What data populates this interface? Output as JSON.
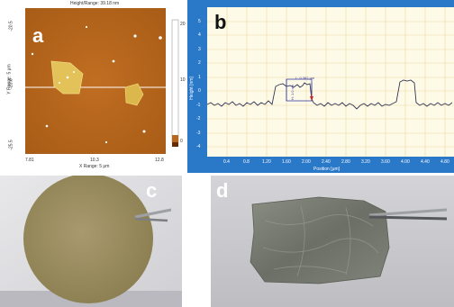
{
  "panels": {
    "a": {
      "letter": "a",
      "header": "Height/Range: 39.18 nm",
      "x_axis_label": "X Range: 5 μm",
      "y_axis_label": "Y Range: 5 μm",
      "x_ticks": [
        "7.81",
        "10.3",
        "12.8"
      ],
      "y_ticks": [
        "-20.5",
        "-23.0",
        "-25.5"
      ],
      "colorbar_ticks": [
        "20",
        "10",
        "0"
      ]
    },
    "b": {
      "letter": "b",
      "y_axis_label": "Height [nm]",
      "x_axis_label": "Position [μm]",
      "y_ticks": [
        "5",
        "4",
        "3",
        "2",
        "1",
        "0",
        "-1",
        "-2",
        "-3",
        "-4"
      ],
      "x_ticks": [
        "0.4",
        "0.8",
        "1.20",
        "1.60",
        "2.00",
        "2.40",
        "2.80",
        "3.20",
        "3.60",
        "4.00",
        "4.40",
        "4.80"
      ],
      "annotation_h": "H: 1.0 nm",
      "annotation_l": "L: 0.362 μm"
    },
    "c": {
      "letter": "c"
    },
    "d": {
      "letter": "d"
    }
  },
  "colors": {
    "afm_background": "#b8681e",
    "afm_flake": "#e3c25a",
    "plot_frame": "#2a78c8",
    "plot_bg": "#fdfbe8",
    "plot_grid": "#f0d8a0",
    "profile_line": "#333355"
  }
}
